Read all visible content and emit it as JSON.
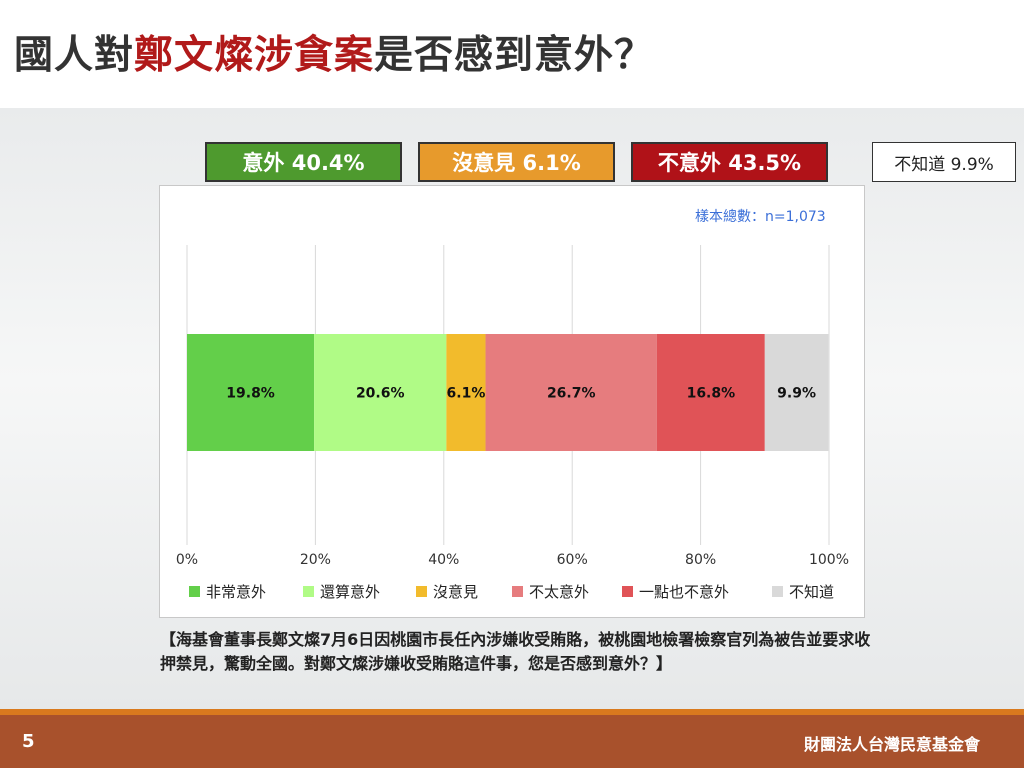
{
  "title": {
    "prefix": "國人對",
    "highlight": "鄭文燦涉貪案",
    "suffix": "是否感到意外？"
  },
  "summary": [
    {
      "label": "意外 40.4%",
      "bg": "#4e9a2e",
      "fg": "#ffffff"
    },
    {
      "label": "沒意見 6.1%",
      "bg": "#e79a2c",
      "fg": "#ffffff"
    },
    {
      "label": "不意外 43.5%",
      "bg": "#b01218",
      "fg": "#ffffff"
    },
    {
      "label": "不知道 9.9%",
      "bg": "#ffffff",
      "fg": "#222222"
    }
  ],
  "chart_data": {
    "type": "bar",
    "orientation": "horizontal",
    "stacked": true,
    "sample_size": "樣本總數：n=1,073",
    "xlim": [
      0,
      100
    ],
    "x_ticks": [
      "0%",
      "20%",
      "40%",
      "60%",
      "80%",
      "100%"
    ],
    "grid": true,
    "legend_position": "bottom",
    "series": [
      {
        "name": "非常意外",
        "value": 19.8,
        "label": "19.8%",
        "color": "#63cf4a"
      },
      {
        "name": "還算意外",
        "value": 20.6,
        "label": "20.6%",
        "color": "#b0fb86"
      },
      {
        "name": "沒意見",
        "value": 6.1,
        "label": "6.1%",
        "color": "#f2bb2c"
      },
      {
        "name": "不太意外",
        "value": 26.7,
        "label": "26.7%",
        "color": "#e67c7e"
      },
      {
        "name": "一點也不意外",
        "value": 16.8,
        "label": "16.8%",
        "color": "#e05357"
      },
      {
        "name": "不知道",
        "value": 9.9,
        "label": "9.9%",
        "color": "#d9d9d9"
      }
    ]
  },
  "question": "【海基會董事長鄭文燦7月6日因桃園市長任內涉嫌收受賄賂，被桃園地檢署檢察官列為被告並要求收押禁見，驚動全國。對鄭文燦涉嫌收受賄賂這件事，您是否感到意外？】",
  "footer": {
    "page": "5",
    "org": "財團法人台灣民意基金會"
  }
}
